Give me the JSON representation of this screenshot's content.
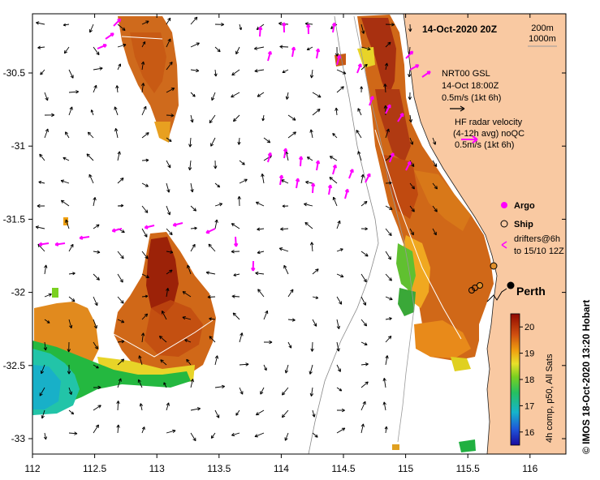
{
  "title": "14-Oct-2020 20Z",
  "depth_legend": {
    "line1": "200m",
    "line2": "1000m"
  },
  "model_legend": {
    "line1": "NRT00 GSL",
    "line2": "14-Oct 18:00Z",
    "line3": "0.5m/s (1kt 6h)"
  },
  "radar_legend": {
    "line1": "HF radar velocity",
    "line2": "(4-12h avg) noQC",
    "line3": "0.5m/s (1kt 6h)"
  },
  "symbols": {
    "argo": "Argo",
    "ship": "Ship",
    "drifters1": "drifters@6h",
    "drifters2": "to 15/10 12Z"
  },
  "city": "Perth",
  "colorbar": {
    "ticks": [
      "20",
      "19",
      "18",
      "17",
      "16"
    ],
    "label": "4h comp, p50, All Sats",
    "vmin": 15.5,
    "vmax": 20.5
  },
  "credit": "© IMOS 18-Oct-2020 13:20 Hobart",
  "x_ticks": [
    "112",
    "112.5",
    "113",
    "113.5",
    "114",
    "114.5",
    "115",
    "115.5",
    "116"
  ],
  "y_ticks": [
    "-30.5",
    "-31",
    "-31.5",
    "-32",
    "-32.5",
    "-33"
  ],
  "colors": {
    "land": "#f9c9a2",
    "arrow_radar": "#ff00ff",
    "arrow_model": "#000000",
    "argo": "#ff00ff",
    "ship": "#e0902c"
  }
}
